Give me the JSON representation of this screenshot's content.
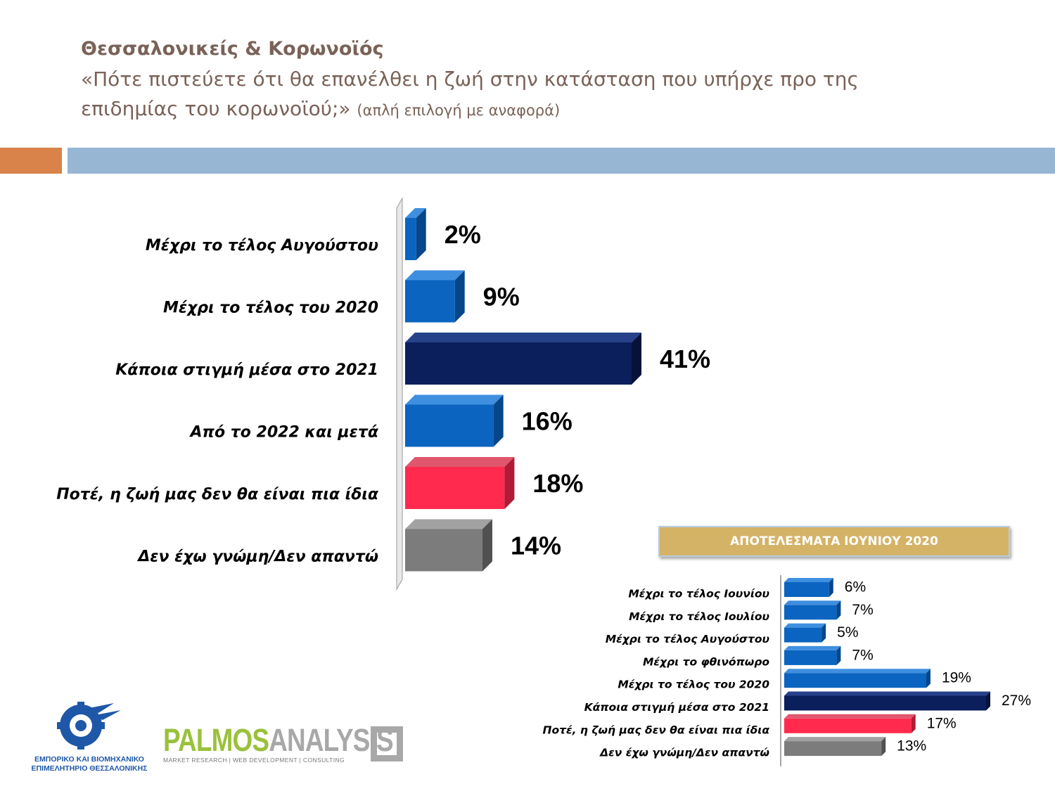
{
  "header": {
    "title": "Θεσσαλονικείς & Κορωνοϊός",
    "question_line1": "«Πότε πιστεύετε ότι θα επανέλθει η ζωή στην κατάσταση που υπήρχε προ της",
    "question_line2": "επιδημίας του κορωνοϊού;»",
    "question_note": "(απλή επιλογή με αναφορά)"
  },
  "june_heading": "ΑΠΟΤΕΛΕΣΜΑΤΑ ΙΟΥΝΙΟΥ 2020",
  "logos": {
    "chamber_line1": "ΕΜΠΟΡΙΚΟ ΚΑΙ ΒΙΟΜΗΧΑΝΙΚΟ",
    "chamber_line2": "ΕΠΙΜΕΛΗΤΗΡΙΟ ΘΕΣΣΑΛΟΝΙΚΗΣ",
    "palmos_part1": "PALMOS",
    "palmos_part2": "ANALYSIS",
    "palmos_tagline": "MARKET RESEARCH | WEB DEVELOPMENT | CONSULTING"
  },
  "colors": {
    "accent_orange": "#d9824a",
    "band_blue": "#97b6d4",
    "title_brown": "#7a6258",
    "bar_blue": "#0a64c0",
    "bar_navy": "#0a1f5c",
    "bar_red": "#ff2a4d",
    "bar_grey": "#7c7c7c",
    "june_gold": "#d4b366"
  },
  "chart_data": [
    {
      "type": "bar",
      "orientation": "horizontal",
      "categories": [
        "Μέχρι το τέλος Αυγούστου",
        "Μέχρι το τέλος του 2020",
        "Κάποια στιγμή μέσα στο 2021",
        "Από το 2022 και μετά",
        "Ποτέ, η ζωή μας δεν θα είναι πια ίδια",
        "Δεν έχω γνώμη/Δεν απαντώ"
      ],
      "values": [
        2,
        9,
        41,
        16,
        18,
        14
      ],
      "value_labels": [
        "2%",
        "9%",
        "41%",
        "16%",
        "18%",
        "14%"
      ],
      "bar_colors": [
        "blue",
        "blue",
        "navy",
        "blue",
        "red",
        "grey"
      ],
      "title": "",
      "xlabel": "",
      "ylabel": "",
      "xlim": [
        0,
        41
      ],
      "grid": false,
      "legend": "none"
    },
    {
      "type": "bar",
      "orientation": "horizontal",
      "title": "ΑΠΟΤΕΛΕΣΜΑΤΑ ΙΟΥΝΙΟΥ 2020",
      "categories": [
        "Μέχρι το τέλος Ιουνίου",
        "Μέχρι το τέλος Ιουλίου",
        "Μέχρι το τέλος Αυγούστου",
        "Μέχρι το φθινόπωρο",
        "Μέχρι το τέλος του 2020",
        "Κάποια στιγμή μέσα στο 2021",
        "Ποτέ, η ζωή μας δεν θα είναι πια ίδια",
        "Δεν έχω γνώμη/Δεν απαντώ"
      ],
      "values": [
        6,
        7,
        5,
        7,
        19,
        27,
        17,
        13
      ],
      "value_labels": [
        "6%",
        "7%",
        "5%",
        "7%",
        "19%",
        "27%",
        "17%",
        "13%"
      ],
      "bar_colors": [
        "blue",
        "blue",
        "blue",
        "blue",
        "blue",
        "navy",
        "red",
        "grey"
      ],
      "xlabel": "",
      "ylabel": "",
      "xlim": [
        0,
        27
      ],
      "grid": false,
      "legend": "none"
    }
  ]
}
